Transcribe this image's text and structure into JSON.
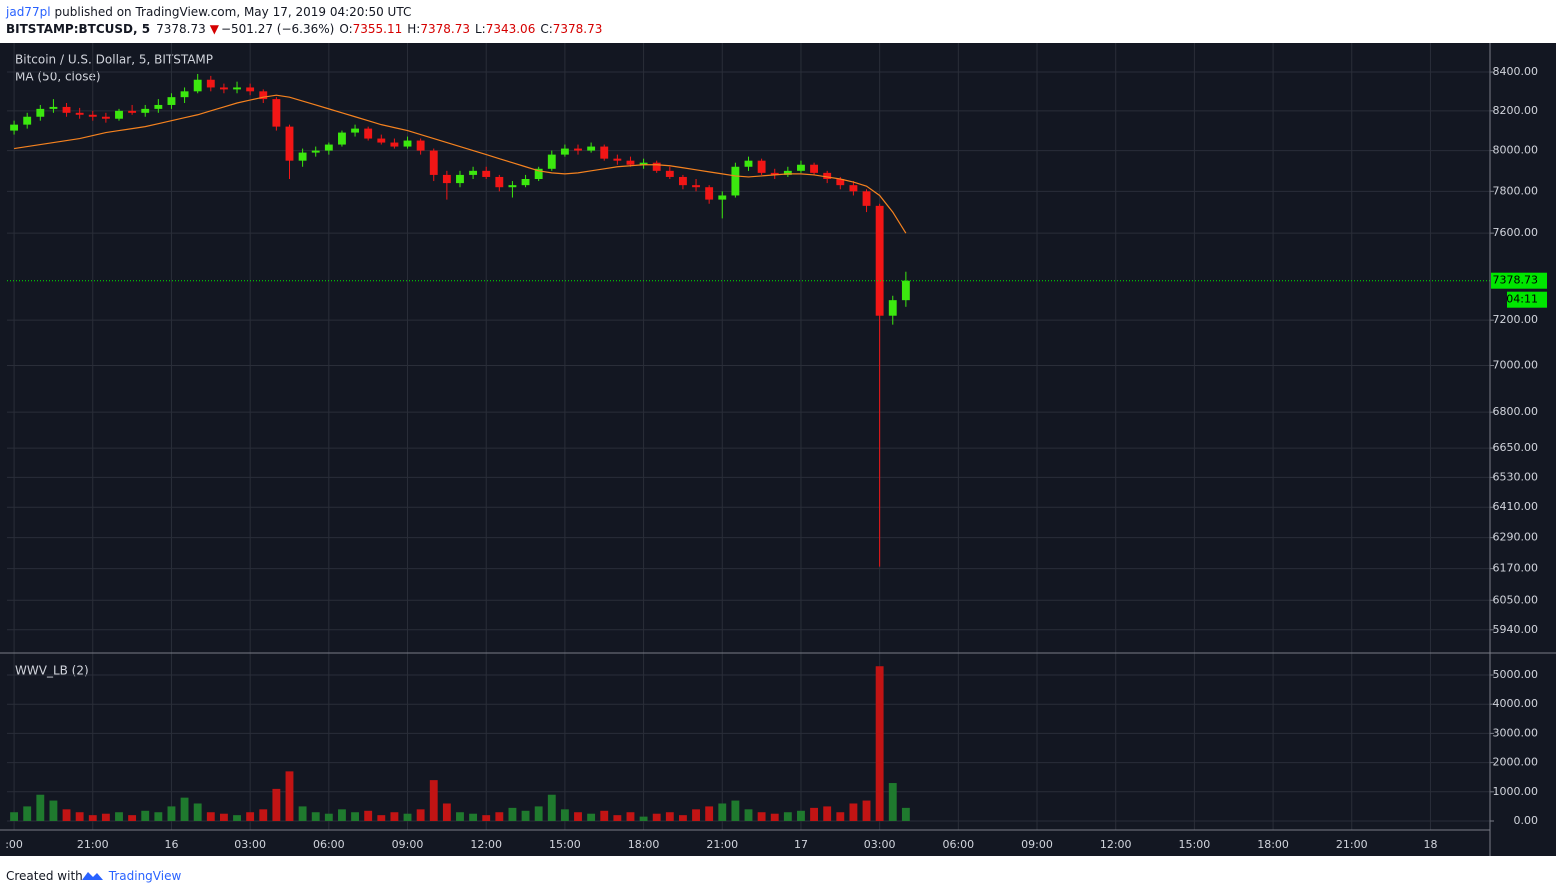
{
  "header": {
    "author": "jad77pl",
    "published": "published on TradingView.com, May 17, 2019 04:20:50 UTC",
    "symbol": "BITSTAMP:BTCUSD, 5",
    "last": "7378.73",
    "arrow": "▼",
    "change": "−501.27 (−6.36%)",
    "ohlc": [
      {
        "label": "O:",
        "value": "7355.11"
      },
      {
        "label": "H:",
        "value": "7378.73"
      },
      {
        "label": "L:",
        "value": "7343.06"
      },
      {
        "label": "C:",
        "value": "7378.73"
      }
    ]
  },
  "chart_data": [
    {
      "type": "candlestick",
      "title": "Bitcoin / U.S. Dollar, 5, BITSTAMP",
      "x": [
        0,
        0.5,
        1,
        1.5,
        2,
        2.5,
        3,
        3.5,
        4,
        4.5,
        5,
        5.5,
        6,
        6.5,
        7,
        7.5,
        8,
        8.5,
        9,
        9.5,
        10,
        10.5,
        11,
        11.5,
        12,
        12.5,
        13,
        13.5,
        14,
        14.5,
        15,
        15.5,
        16,
        16.5,
        17,
        17.5,
        18,
        18.5,
        19,
        19.5,
        20,
        20.5,
        21,
        21.5,
        22,
        22.5,
        23,
        23.5,
        24,
        24.5,
        25,
        25.5,
        26,
        26.5,
        27,
        27.5,
        28,
        28.5,
        29,
        29.5,
        30,
        30.5,
        31,
        31.5,
        32,
        32.5,
        33,
        33.5,
        34
      ],
      "open": [
        8100,
        8130,
        8170,
        8210,
        8220,
        8190,
        8180,
        8170,
        8160,
        8200,
        8190,
        8210,
        8230,
        8270,
        8300,
        8360,
        8320,
        8310,
        8320,
        8300,
        8260,
        8120,
        7950,
        7990,
        8000,
        8030,
        8090,
        8110,
        8060,
        8040,
        8020,
        8050,
        8000,
        7880,
        7840,
        7880,
        7900,
        7870,
        7820,
        7830,
        7860,
        7910,
        7980,
        8010,
        8000,
        8020,
        7960,
        7950,
        7930,
        7940,
        7900,
        7870,
        7830,
        7820,
        7760,
        7780,
        7920,
        7950,
        7890,
        7880,
        7900,
        7930,
        7890,
        7860,
        7830,
        7800,
        7730,
        7220,
        7290
      ],
      "high": [
        8150,
        8190,
        8230,
        8260,
        8240,
        8215,
        8200,
        8190,
        8210,
        8230,
        8230,
        8260,
        8290,
        8320,
        8390,
        8380,
        8340,
        8350,
        8340,
        8310,
        8270,
        8130,
        8010,
        8020,
        8040,
        8100,
        8130,
        8120,
        8080,
        8060,
        8070,
        8060,
        8010,
        7900,
        7900,
        7920,
        7920,
        7880,
        7850,
        7880,
        7920,
        8000,
        8030,
        8030,
        8040,
        8030,
        7980,
        7970,
        7960,
        7950,
        7920,
        7880,
        7860,
        7830,
        7800,
        7940,
        7970,
        7960,
        7910,
        7920,
        7950,
        7940,
        7900,
        7870,
        7850,
        7810,
        7740,
        7310,
        7420
      ],
      "low": [
        8080,
        8110,
        8150,
        8190,
        8170,
        8160,
        8150,
        8140,
        8150,
        8180,
        8170,
        8190,
        8210,
        8240,
        8290,
        8300,
        8290,
        8290,
        8280,
        8240,
        8100,
        7860,
        7920,
        7970,
        7980,
        8020,
        8070,
        8050,
        8030,
        8010,
        8010,
        7980,
        7850,
        7760,
        7820,
        7860,
        7860,
        7800,
        7770,
        7820,
        7850,
        7900,
        7970,
        7980,
        7990,
        7950,
        7930,
        7920,
        7910,
        7890,
        7860,
        7810,
        7800,
        7740,
        7670,
        7770,
        7900,
        7880,
        7860,
        7870,
        7890,
        7880,
        7840,
        7810,
        7780,
        7700,
        6178,
        7180,
        7260
      ],
      "close": [
        8130,
        8170,
        8210,
        8220,
        8190,
        8180,
        8170,
        8160,
        8200,
        8190,
        8210,
        8230,
        8270,
        8300,
        8360,
        8320,
        8310,
        8320,
        8300,
        8260,
        8120,
        7950,
        7990,
        8000,
        8030,
        8090,
        8110,
        8060,
        8040,
        8020,
        8050,
        8000,
        7880,
        7840,
        7880,
        7900,
        7870,
        7820,
        7830,
        7860,
        7910,
        7980,
        8010,
        8000,
        8020,
        7960,
        7950,
        7930,
        7940,
        7900,
        7870,
        7830,
        7820,
        7760,
        7780,
        7920,
        7950,
        7890,
        7880,
        7900,
        7930,
        7890,
        7860,
        7830,
        7800,
        7730,
        7220,
        7290,
        7378.73
      ],
      "up_color": "#3ce80f",
      "down_color": "#f21616",
      "series": [
        {
          "name": "MA (50, close)",
          "color": "#f5821f",
          "values": [
            8010,
            8020,
            8030,
            8040,
            8050,
            8060,
            8075,
            8090,
            8100,
            8110,
            8120,
            8135,
            8150,
            8165,
            8180,
            8200,
            8220,
            8240,
            8255,
            8270,
            8280,
            8270,
            8250,
            8230,
            8210,
            8190,
            8170,
            8150,
            8130,
            8115,
            8100,
            8080,
            8060,
            8040,
            8020,
            8000,
            7980,
            7960,
            7940,
            7920,
            7900,
            7890,
            7885,
            7890,
            7900,
            7910,
            7920,
            7925,
            7930,
            7930,
            7925,
            7915,
            7905,
            7895,
            7885,
            7875,
            7870,
            7875,
            7880,
            7885,
            7885,
            7880,
            7870,
            7860,
            7845,
            7825,
            7780,
            7700,
            7600
          ]
        }
      ],
      "xlim": [
        -0.27,
        56.27
      ],
      "ylim": [
        5855,
        8553
      ],
      "log": true,
      "grid": true,
      "xticks": [
        {
          "value": 0,
          "label": ":00"
        },
        {
          "value": 3,
          "label": "21:00"
        },
        {
          "value": 6,
          "label": "16"
        },
        {
          "value": 9,
          "label": "03:00"
        },
        {
          "value": 12,
          "label": "06:00"
        },
        {
          "value": 15,
          "label": "09:00"
        },
        {
          "value": 18,
          "label": "12:00"
        },
        {
          "value": 21,
          "label": "15:00"
        },
        {
          "value": 24,
          "label": "18:00"
        },
        {
          "value": 27,
          "label": "21:00"
        },
        {
          "value": 30,
          "label": "17"
        },
        {
          "value": 33,
          "label": "03:00"
        },
        {
          "value": 36,
          "label": "06:00"
        },
        {
          "value": 39,
          "label": "09:00"
        },
        {
          "value": 42,
          "label": "12:00"
        },
        {
          "value": 45,
          "label": "15:00"
        },
        {
          "value": 48,
          "label": "18:00"
        },
        {
          "value": 51,
          "label": "21:00"
        },
        {
          "value": 54,
          "label": "18"
        }
      ],
      "yticks": [
        {
          "value": 8400,
          "label": "8400.00"
        },
        {
          "value": 8200,
          "label": "8200.00"
        },
        {
          "value": 8000,
          "label": "8000.00"
        },
        {
          "value": 7800,
          "label": "7800.00"
        },
        {
          "value": 7600,
          "label": "7600.00"
        },
        {
          "value": 7200,
          "label": "7200.00"
        },
        {
          "value": 7000,
          "label": "7000.00"
        },
        {
          "value": 6800,
          "label": "6800.00"
        },
        {
          "value": 6650,
          "label": "6650.00"
        },
        {
          "value": 6530,
          "label": "6530.00"
        },
        {
          "value": 6410,
          "label": "6410.00"
        },
        {
          "value": 6290,
          "label": "6290.00"
        },
        {
          "value": 6170,
          "label": "6170.00"
        },
        {
          "value": 6050,
          "label": "6050.00"
        },
        {
          "value": 5940,
          "label": "5940.00"
        }
      ],
      "last_price": 7378.73,
      "countdown": "04:11",
      "last_color": "#00e600"
    },
    {
      "type": "bar",
      "title": "WWV_LB (2)",
      "x": [
        0,
        0.5,
        1,
        1.5,
        2,
        2.5,
        3,
        3.5,
        4,
        4.5,
        5,
        5.5,
        6,
        6.5,
        7,
        7.5,
        8,
        8.5,
        9,
        9.5,
        10,
        10.5,
        11,
        11.5,
        12,
        12.5,
        13,
        13.5,
        14,
        14.5,
        15,
        15.5,
        16,
        16.5,
        17,
        17.5,
        18,
        18.5,
        19,
        19.5,
        20,
        20.5,
        21,
        21.5,
        22,
        22.5,
        23,
        23.5,
        24,
        24.5,
        25,
        25.5,
        26,
        26.5,
        27,
        27.5,
        28,
        28.5,
        29,
        29.5,
        30,
        30.5,
        31,
        31.5,
        32,
        32.5,
        33,
        33.5,
        34
      ],
      "values": [
        300,
        500,
        900,
        700,
        400,
        300,
        200,
        250,
        300,
        200,
        350,
        300,
        500,
        800,
        600,
        300,
        250,
        200,
        300,
        400,
        1100,
        1700,
        500,
        300,
        250,
        400,
        300,
        350,
        200,
        300,
        250,
        400,
        1400,
        600,
        300,
        250,
        200,
        300,
        450,
        350,
        500,
        900,
        400,
        300,
        250,
        350,
        200,
        300,
        150,
        250,
        300,
        200,
        400,
        500,
        600,
        700,
        400,
        300,
        250,
        300,
        350,
        450,
        500,
        300,
        600,
        700,
        5300,
        1300,
        450
      ],
      "up_color": "#1f7a2e",
      "down_color": "#c21414",
      "xlim": [
        -0.27,
        56.27
      ],
      "ylim": [
        -308,
        5753
      ],
      "yticks": [
        {
          "value": 5000,
          "label": "5000.00"
        },
        {
          "value": 4000,
          "label": "4000.00"
        },
        {
          "value": 3000,
          "label": "3000.00"
        },
        {
          "value": 2000,
          "label": "2000.00"
        },
        {
          "value": 1000,
          "label": "1000.00"
        },
        {
          "value": 0,
          "label": "0.00"
        }
      ]
    }
  ],
  "footer": {
    "created": "Created with",
    "brand": "TradingView"
  }
}
